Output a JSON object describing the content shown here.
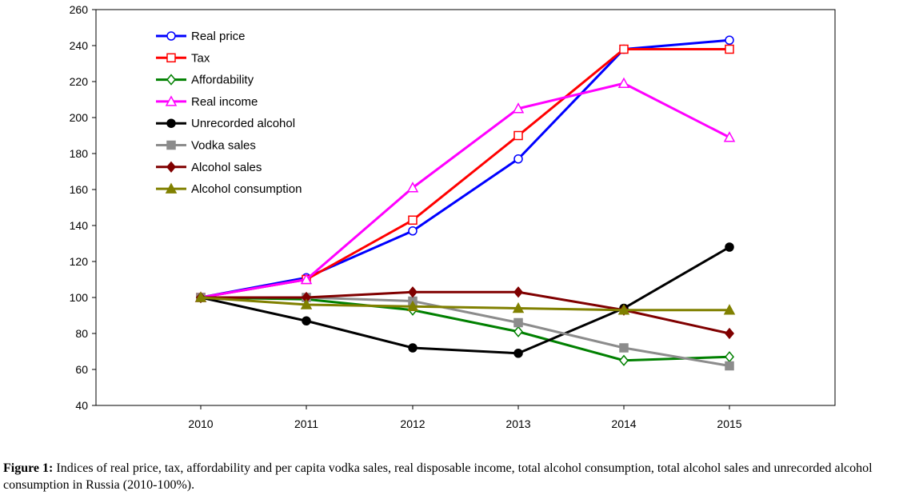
{
  "chart_data": {
    "type": "line",
    "categories": [
      "2010",
      "2011",
      "2012",
      "2013",
      "2014",
      "2015"
    ],
    "ylim": [
      40,
      260
    ],
    "yticks": [
      40,
      60,
      80,
      100,
      120,
      140,
      160,
      180,
      200,
      220,
      240,
      260
    ],
    "grid": false,
    "legend_position": "top-left",
    "series": [
      {
        "name": "Real price",
        "color": "#0000ff",
        "marker": "circle-open",
        "values": [
          100,
          111,
          137,
          177,
          238,
          243
        ]
      },
      {
        "name": "Tax",
        "color": "#ff0000",
        "marker": "square-open",
        "values": [
          100,
          110,
          143,
          190,
          238,
          238
        ]
      },
      {
        "name": "Affordability",
        "color": "#008000",
        "marker": "diamond-open",
        "values": [
          100,
          99,
          93,
          81,
          65,
          67
        ]
      },
      {
        "name": "Real income",
        "color": "#ff00ff",
        "marker": "triangle-open",
        "values": [
          100,
          110,
          161,
          205,
          219,
          189
        ]
      },
      {
        "name": "Unrecorded alcohol",
        "color": "#000000",
        "marker": "circle-filled",
        "values": [
          100,
          87,
          72,
          69,
          94,
          128
        ]
      },
      {
        "name": "Vodka sales",
        "color": "#8c8c8c",
        "marker": "square-filled",
        "values": [
          100,
          100,
          98,
          86,
          72,
          62
        ]
      },
      {
        "name": "Alcohol sales",
        "color": "#800000",
        "marker": "diamond-filled",
        "values": [
          100,
          100,
          103,
          103,
          93,
          80
        ]
      },
      {
        "name": "Alcohol consumption",
        "color": "#808000",
        "marker": "triangle-filled",
        "values": [
          100,
          96,
          95,
          94,
          93,
          93
        ]
      }
    ]
  },
  "caption": {
    "label": "Figure 1:",
    "text": " Indices of real price, tax, affordability and per capita vodka sales, real disposable income, total alcohol consumption, total alcohol sales and unrecorded alcohol consumption in Russia (2010-100%)."
  }
}
